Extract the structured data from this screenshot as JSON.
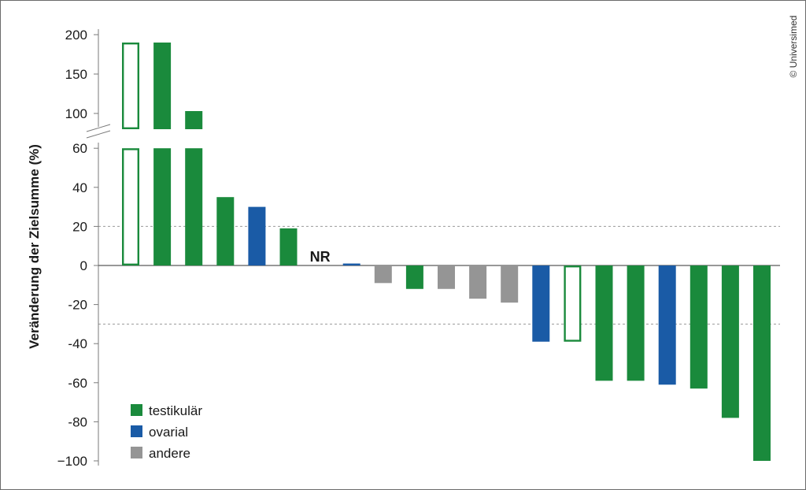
{
  "chart_data": {
    "type": "bar",
    "ylabel": "Veränderung der Zielsumme (%)",
    "y_ticks_lower": [
      "60",
      "40",
      "20",
      "0",
      "-20",
      "-40",
      "-60",
      "-80",
      "−100"
    ],
    "y_ticks_upper": [
      "200",
      "150",
      "100"
    ],
    "axis_break": true,
    "reference_lines": [
      20,
      -30
    ],
    "colors": {
      "testikulär": "#1a8a3c",
      "ovarial": "#1a5ba6",
      "andere": "#959595"
    },
    "bars": [
      {
        "value": 190,
        "group": "testikulär",
        "hollow": true
      },
      {
        "value": 190,
        "group": "testikulär",
        "hollow": false
      },
      {
        "value": 103,
        "group": "testikulär",
        "hollow": false
      },
      {
        "value": 35,
        "group": "testikulär",
        "hollow": false
      },
      {
        "value": 30,
        "group": "ovarial",
        "hollow": false
      },
      {
        "value": 19,
        "group": "testikulär",
        "hollow": false
      },
      {
        "value": null,
        "label": "NR"
      },
      {
        "value": 1,
        "group": "ovarial",
        "hollow": false
      },
      {
        "value": -9,
        "group": "andere",
        "hollow": false
      },
      {
        "value": -12,
        "group": "testikulär",
        "hollow": false
      },
      {
        "value": -12,
        "group": "andere",
        "hollow": false
      },
      {
        "value": -17,
        "group": "andere",
        "hollow": false
      },
      {
        "value": -19,
        "group": "andere",
        "hollow": false
      },
      {
        "value": -39,
        "group": "ovarial",
        "hollow": false
      },
      {
        "value": -39,
        "group": "testikulär",
        "hollow": true
      },
      {
        "value": -59,
        "group": "testikulär",
        "hollow": false
      },
      {
        "value": -59,
        "group": "testikulär",
        "hollow": false
      },
      {
        "value": -61,
        "group": "ovarial",
        "hollow": false
      },
      {
        "value": -63,
        "group": "testikulär",
        "hollow": false
      },
      {
        "value": -78,
        "group": "testikulär",
        "hollow": false
      },
      {
        "value": -100,
        "group": "testikulär",
        "hollow": false
      }
    ],
    "legend": [
      {
        "label": "testikulär",
        "group": "testikulär"
      },
      {
        "label": "ovarial",
        "group": "ovarial"
      },
      {
        "label": "andere",
        "group": "andere"
      }
    ],
    "legend_position": "bottom-left",
    "copyright": "© Universimed"
  }
}
